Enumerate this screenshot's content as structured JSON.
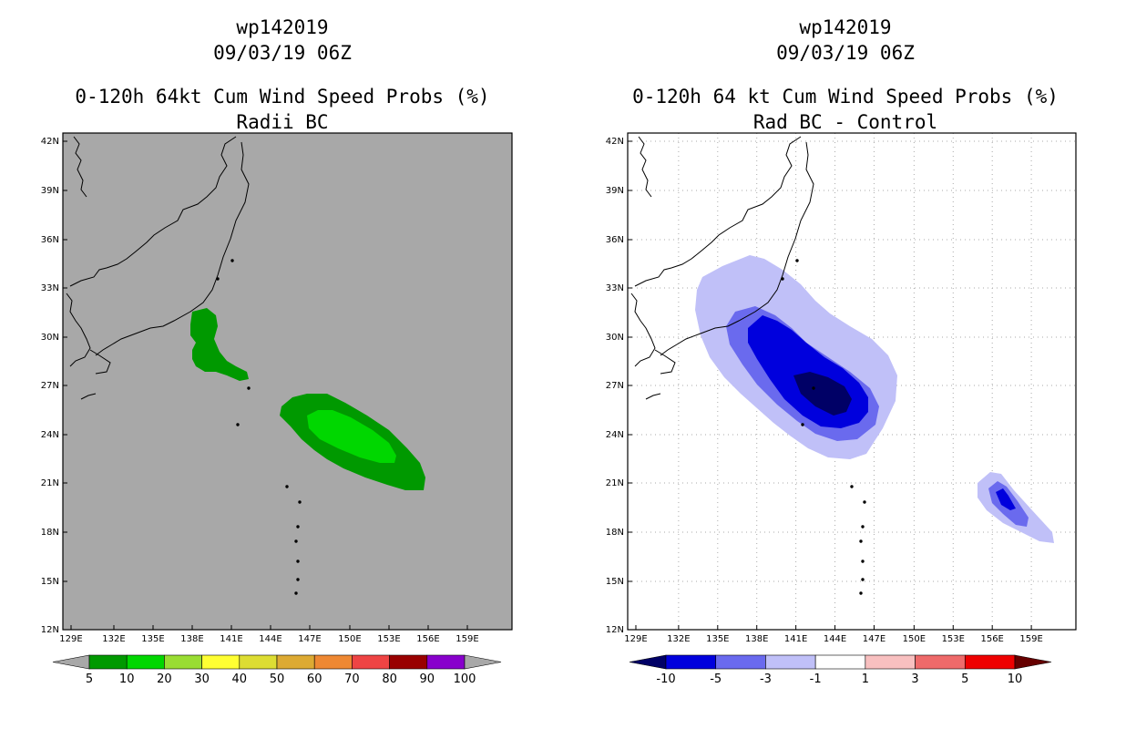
{
  "chart_data": [
    {
      "type": "heatmap",
      "storm_id": "wp142019",
      "datetime": "09/03/19 06Z",
      "title": "0-120h 64kt Cum Wind Speed Probs (%)",
      "subtitle": "Radii BC",
      "xlabel": "",
      "ylabel": "",
      "lon_range": [
        128,
        163
      ],
      "lat_range": [
        12,
        42.5
      ],
      "x_ticks": [
        "129E",
        "132E",
        "135E",
        "138E",
        "141E",
        "144E",
        "147E",
        "150E",
        "153E",
        "156E",
        "159E"
      ],
      "y_ticks": [
        "42N",
        "39N",
        "36N",
        "33N",
        "30N",
        "27N",
        "24N",
        "21N",
        "18N",
        "15N",
        "12N"
      ],
      "colorbar": {
        "labels": [
          "5",
          "10",
          "20",
          "30",
          "40",
          "50",
          "60",
          "70",
          "80",
          "90",
          "100"
        ],
        "colors": [
          "#009900",
          "#00d700",
          "#99dd33",
          "#ffff33",
          "#dddd33",
          "#ddaa33",
          "#ee8833",
          "#ee4444",
          "#990000",
          "#8800cc"
        ],
        "under_color": "#a8a8a8",
        "over_color": "#a8a8a8"
      },
      "background": "#a8a8a8",
      "regions": [
        {
          "name": "5-10% central area",
          "level": "5-10",
          "color": "#009900"
        },
        {
          "name": "5-10% eastern swath",
          "level": "5-10",
          "color": "#009900"
        },
        {
          "name": "10-20% core",
          "level": "10-20",
          "color": "#00d700"
        }
      ]
    },
    {
      "type": "heatmap",
      "storm_id": "wp142019",
      "datetime": "09/03/19 06Z",
      "title": "0-120h 64 kt Cum Wind Speed Probs (%)",
      "subtitle": "Rad BC - Control",
      "xlabel": "",
      "ylabel": "",
      "lon_range": [
        128,
        163
      ],
      "lat_range": [
        12,
        42.5
      ],
      "x_ticks": [
        "129E",
        "132E",
        "135E",
        "138E",
        "141E",
        "144E",
        "147E",
        "150E",
        "153E",
        "156E",
        "159E"
      ],
      "y_ticks": [
        "42N",
        "39N",
        "36N",
        "33N",
        "30N",
        "27N",
        "24N",
        "21N",
        "18N",
        "15N",
        "12N"
      ],
      "colorbar": {
        "labels": [
          "-10",
          "-5",
          "-3",
          "-1",
          "1",
          "3",
          "5",
          "10"
        ],
        "colors": [
          "#0000dd",
          "#6a6aee",
          "#c0c0f8",
          "#ffffff",
          "#f8c0c0",
          "#ee6a6a",
          "#ee0000"
        ],
        "under_color": "#000066",
        "over_color": "#660000"
      },
      "background": "#ffffff",
      "regions": [
        {
          "name": "-3 to -1 main swath",
          "level": "-3 to -1",
          "color": "#c0c0f8"
        },
        {
          "name": "-5 to -3 main swath",
          "level": "-5 to -3",
          "color": "#6a6aee"
        },
        {
          "name": "-10 to -5 core",
          "level": "-10 to -5",
          "color": "#0000dd"
        },
        {
          "name": "below -10 inner core",
          "level": "< -10",
          "color": "#000066"
        },
        {
          "name": "-3 to -1 eastern blob",
          "level": "-3 to -1",
          "color": "#c0c0f8"
        },
        {
          "name": "-5 to -3 eastern blob",
          "level": "-5 to -3",
          "color": "#6a6aee"
        },
        {
          "name": "-10 to -5 eastern blob",
          "level": "-10 to -5",
          "color": "#0000dd"
        }
      ]
    }
  ]
}
